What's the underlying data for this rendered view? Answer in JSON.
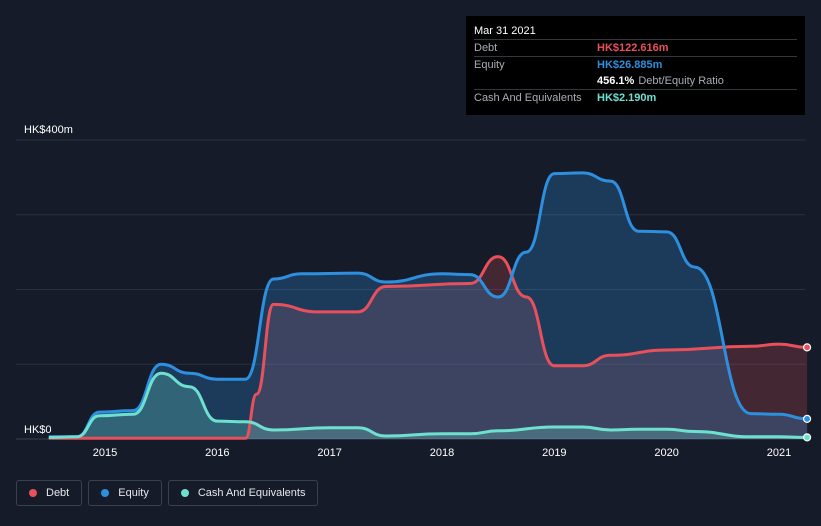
{
  "tooltip": {
    "date": "Mar 31 2021",
    "debt_label": "Debt",
    "debt_value": "HK$122.616m",
    "equity_label": "Equity",
    "equity_value": "HK$26.885m",
    "ratio_value": "456.1%",
    "ratio_label": "Debt/Equity Ratio",
    "cash_label": "Cash And Equivalents",
    "cash_value": "HK$2.190m"
  },
  "legend": {
    "debt": "Debt",
    "equity": "Equity",
    "cash": "Cash And Equivalents"
  },
  "colors": {
    "debt": "#e8505b",
    "equity": "#2e8fdf",
    "cash": "#6ee0d0",
    "background": "#151b28",
    "grid": "#2c3140"
  },
  "chart_data": {
    "type": "area",
    "title": "",
    "ylabel": "",
    "xlabel": "",
    "y_unit_prefix": "HK$",
    "y_top_label": "HK$400m",
    "y_bottom_label": "HK$0",
    "ylim": [
      0,
      400
    ],
    "xlim": [
      2014.5,
      2021.25
    ],
    "x_ticks": [
      2015,
      2016,
      2017,
      2018,
      2019,
      2020,
      2021
    ],
    "x_tick_labels": [
      "2015",
      "2016",
      "2017",
      "2018",
      "2019",
      "2020",
      "2021"
    ],
    "series": [
      {
        "name": "Debt",
        "key": "debt",
        "points": [
          [
            2014.5,
            1
          ],
          [
            2016.25,
            1
          ],
          [
            2016.35,
            60
          ],
          [
            2016.5,
            180
          ],
          [
            2016.9,
            170
          ],
          [
            2017.25,
            170
          ],
          [
            2017.5,
            204
          ],
          [
            2018.25,
            208
          ],
          [
            2018.5,
            244
          ],
          [
            2018.75,
            190
          ],
          [
            2019.0,
            98
          ],
          [
            2019.25,
            98
          ],
          [
            2019.5,
            112
          ],
          [
            2020.0,
            119
          ],
          [
            2020.75,
            124
          ],
          [
            2021.0,
            127
          ],
          [
            2021.25,
            122.6
          ]
        ]
      },
      {
        "name": "Equity",
        "key": "equity",
        "points": [
          [
            2014.5,
            3
          ],
          [
            2014.75,
            3
          ],
          [
            2014.95,
            36
          ],
          [
            2015.25,
            38
          ],
          [
            2015.5,
            100
          ],
          [
            2015.75,
            88
          ],
          [
            2016.0,
            80
          ],
          [
            2016.25,
            80
          ],
          [
            2016.5,
            214
          ],
          [
            2016.75,
            221
          ],
          [
            2017.25,
            222
          ],
          [
            2017.5,
            210
          ],
          [
            2018.0,
            221
          ],
          [
            2018.25,
            220
          ],
          [
            2018.5,
            190
          ],
          [
            2018.75,
            250
          ],
          [
            2019.0,
            355
          ],
          [
            2019.25,
            356
          ],
          [
            2019.5,
            345
          ],
          [
            2019.75,
            278
          ],
          [
            2020.0,
            277
          ],
          [
            2020.25,
            230
          ],
          [
            2020.75,
            34
          ],
          [
            2021.0,
            33
          ],
          [
            2021.25,
            26.9
          ]
        ]
      },
      {
        "name": "Cash And Equivalents",
        "key": "cash",
        "points": [
          [
            2014.5,
            2
          ],
          [
            2014.75,
            3
          ],
          [
            2014.95,
            31
          ],
          [
            2015.25,
            33
          ],
          [
            2015.5,
            88
          ],
          [
            2015.75,
            70
          ],
          [
            2016.0,
            24
          ],
          [
            2016.25,
            23
          ],
          [
            2016.5,
            12
          ],
          [
            2017.0,
            15
          ],
          [
            2017.25,
            15
          ],
          [
            2017.5,
            4
          ],
          [
            2018.0,
            7
          ],
          [
            2018.25,
            7
          ],
          [
            2018.5,
            11
          ],
          [
            2019.0,
            16
          ],
          [
            2019.25,
            16
          ],
          [
            2019.5,
            12
          ],
          [
            2019.75,
            13
          ],
          [
            2020.0,
            13
          ],
          [
            2020.25,
            10
          ],
          [
            2020.75,
            3
          ],
          [
            2021.0,
            3
          ],
          [
            2021.25,
            2.19
          ]
        ]
      }
    ]
  }
}
